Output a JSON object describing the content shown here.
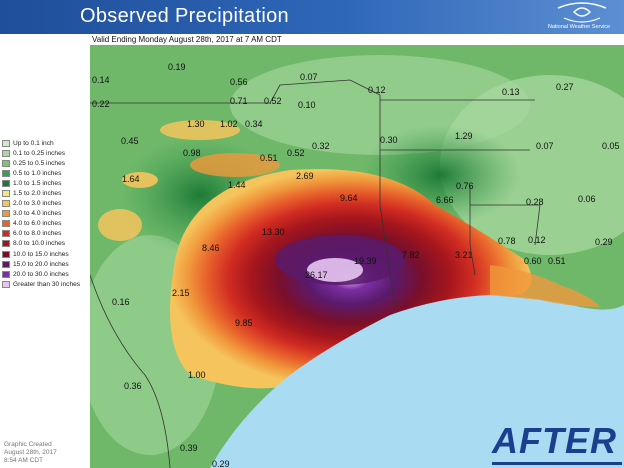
{
  "header": {
    "title": "Observed Precipitation",
    "agency": "National Weather Service",
    "valid_text": "Valid Ending Monday August 28th, 2017 at 7 AM CDT"
  },
  "legend": [
    {
      "label": "Up to 0.1 inch",
      "color": "#cfe8c9"
    },
    {
      "label": "0.1 to 0.25 inches",
      "color": "#a8d8a0"
    },
    {
      "label": "0.25 to 0.5 inches",
      "color": "#7ec27a"
    },
    {
      "label": "0.5 to 1.0 inches",
      "color": "#3f9c4f"
    },
    {
      "label": "1.0 to 1.5 inches",
      "color": "#1d7a36"
    },
    {
      "label": "1.5 to 2.0 inches",
      "color": "#f4e48a"
    },
    {
      "label": "2.0 to 3.0 inches",
      "color": "#f5c45c"
    },
    {
      "label": "3.0 to 4.0 inches",
      "color": "#f0993c"
    },
    {
      "label": "4.0 to 6.0 inches",
      "color": "#e8622b"
    },
    {
      "label": "6.0 to 8.0 inches",
      "color": "#d12c22"
    },
    {
      "label": "8.0 to 10.0 inches",
      "color": "#a5161c"
    },
    {
      "label": "10.0 to 15.0 inches",
      "color": "#7a0f2a"
    },
    {
      "label": "15.0 to 20.0 inches",
      "color": "#5a1a6b"
    },
    {
      "label": "20.0 to 30.0 inches",
      "color": "#7b2fa3"
    },
    {
      "label": "Greater than 30 inches",
      "color": "#e5c6f2"
    }
  ],
  "footer": {
    "created_line1": "Graphic Created",
    "created_line2": "August 28th, 2017",
    "created_line3": "8:54 AM CDT",
    "badge": "AFTER"
  },
  "map": {
    "land_color": "#6fb86a",
    "water_color": "#a9dcf3",
    "border_color": "#333333",
    "rain_labels": [
      {
        "id": "l1",
        "text": "0.14"
      },
      {
        "id": "l2",
        "text": "0.19"
      },
      {
        "id": "l3",
        "text": "0.56"
      },
      {
        "id": "l4",
        "text": "0.07"
      },
      {
        "id": "l5",
        "text": "0.22"
      },
      {
        "id": "l6",
        "text": "0.71"
      },
      {
        "id": "l7",
        "text": "0.52"
      },
      {
        "id": "l8",
        "text": "0.10"
      },
      {
        "id": "l9",
        "text": "0.12"
      },
      {
        "id": "l10",
        "text": "0.13"
      },
      {
        "id": "l11",
        "text": "0.27"
      },
      {
        "id": "l12",
        "text": "1.30"
      },
      {
        "id": "l13",
        "text": "1.02"
      },
      {
        "id": "l14",
        "text": "0.34"
      },
      {
        "id": "l15",
        "text": "0.45"
      },
      {
        "id": "l16",
        "text": "0.98"
      },
      {
        "id": "l17",
        "text": "0.52"
      },
      {
        "id": "l18",
        "text": "0.32"
      },
      {
        "id": "l19",
        "text": "0.30"
      },
      {
        "id": "l20",
        "text": "1.29"
      },
      {
        "id": "l21",
        "text": "0.07"
      },
      {
        "id": "l22",
        "text": "0.05"
      },
      {
        "id": "l23",
        "text": "0.51"
      },
      {
        "id": "l24",
        "text": "1.64"
      },
      {
        "id": "l25",
        "text": "1.44"
      },
      {
        "id": "l26",
        "text": "2.69"
      },
      {
        "id": "l27",
        "text": "0.76"
      },
      {
        "id": "l28",
        "text": "9.64"
      },
      {
        "id": "l29",
        "text": "6.66"
      },
      {
        "id": "l30",
        "text": "0.28"
      },
      {
        "id": "l31",
        "text": "0.06"
      },
      {
        "id": "l32",
        "text": "13.30"
      },
      {
        "id": "l33",
        "text": "8.46"
      },
      {
        "id": "l34",
        "text": "0.78"
      },
      {
        "id": "l35",
        "text": "0.12"
      },
      {
        "id": "l36",
        "text": "0.29"
      },
      {
        "id": "l37",
        "text": "7.82"
      },
      {
        "id": "l38",
        "text": "19.39"
      },
      {
        "id": "l39",
        "text": "3.21"
      },
      {
        "id": "l40",
        "text": "0.60"
      },
      {
        "id": "l41",
        "text": "0.51"
      },
      {
        "id": "l42",
        "text": "26.17"
      },
      {
        "id": "l43",
        "text": "0.16"
      },
      {
        "id": "l44",
        "text": "2.15"
      },
      {
        "id": "l45",
        "text": "9.85"
      },
      {
        "id": "l46",
        "text": "0.36"
      },
      {
        "id": "l47",
        "text": "1.00"
      },
      {
        "id": "l48",
        "text": "0.39"
      },
      {
        "id": "l49",
        "text": "0.29"
      }
    ]
  }
}
